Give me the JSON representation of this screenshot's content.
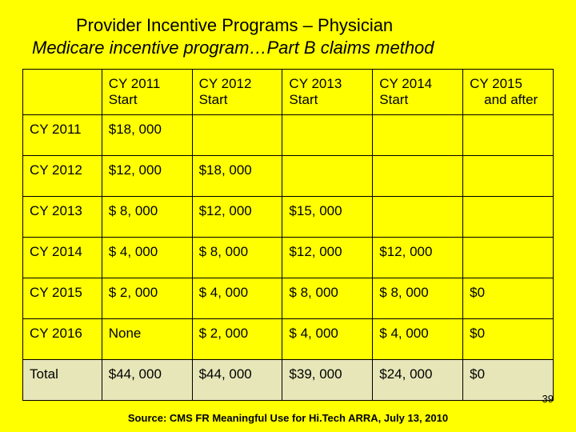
{
  "title": {
    "line1": "Provider Incentive Programs – Physician",
    "line2": "Medicare incentive program…Part B claims method"
  },
  "table": {
    "headers": [
      "",
      "CY 2011 Start",
      "CY 2012 Start",
      "CY 2013 Start",
      "CY 2014 Start",
      "CY 2015 and after"
    ],
    "rows": [
      {
        "label": "CY 2011",
        "cells": [
          "$18, 000",
          "",
          "",
          "",
          ""
        ]
      },
      {
        "label": "CY 2012",
        "cells": [
          "$12, 000",
          "$18, 000",
          "",
          "",
          ""
        ]
      },
      {
        "label": "CY 2013",
        "cells": [
          "$ 8, 000",
          "$12, 000",
          "$15, 000",
          "",
          ""
        ]
      },
      {
        "label": "CY 2014",
        "cells": [
          "$ 4, 000",
          "$ 8, 000",
          "$12, 000",
          "$12, 000",
          ""
        ]
      },
      {
        "label": "CY 2015",
        "cells": [
          "$ 2, 000",
          "$ 4, 000",
          "$ 8, 000",
          "$ 8, 000",
          "$0"
        ]
      },
      {
        "label": "CY 2016",
        "cells": [
          "None",
          "$ 2, 000",
          "$ 4, 000",
          "$ 4, 000",
          "$0"
        ]
      }
    ],
    "total": {
      "label": "Total",
      "cells": [
        "$44, 000",
        "$44, 000",
        "$39, 000",
        "$24, 000",
        "$0"
      ]
    }
  },
  "slide_number": "39",
  "source": "Source: CMS FR Meaningful Use for Hi.Tech ARRA, July 13, 2010",
  "colors": {
    "background": "#ffff00",
    "total_row_bg": "#e6e6b8",
    "border": "#000000",
    "text": "#000000"
  },
  "typography": {
    "title_fontsize": 22,
    "cell_fontsize": 17,
    "footer_fontsize": 13
  }
}
